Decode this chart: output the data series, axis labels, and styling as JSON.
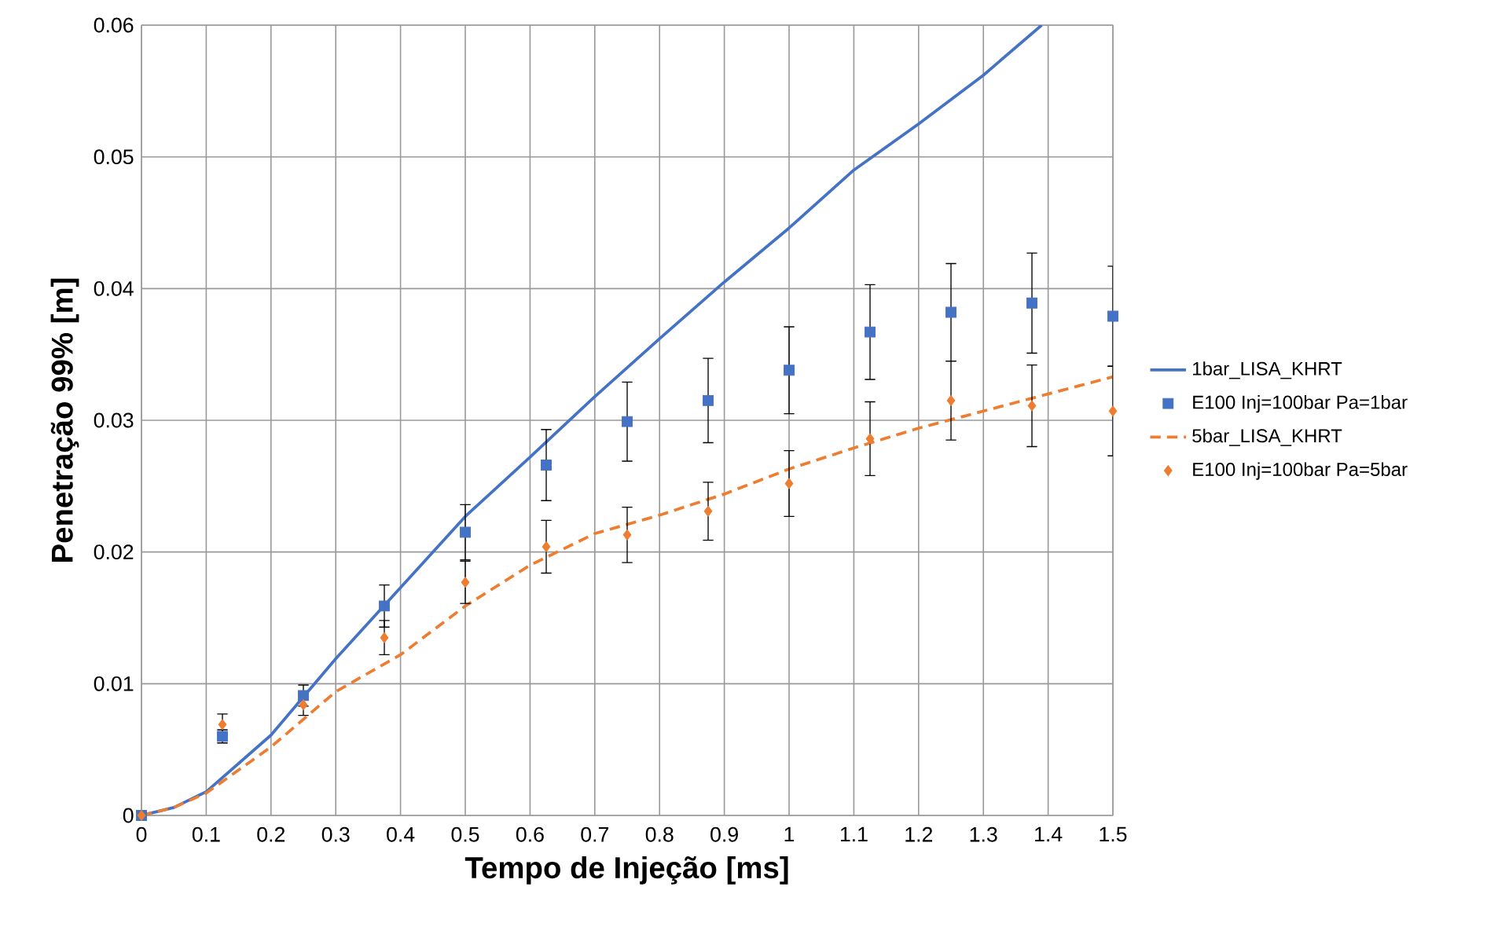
{
  "chart_data": {
    "type": "line",
    "xlabel": "Tempo de Injeção [ms]",
    "ylabel": "Penetração 99% [m]",
    "xlim": [
      0,
      1.5
    ],
    "ylim": [
      0,
      0.06
    ],
    "xticks": [
      0,
      0.1,
      0.2,
      0.3,
      0.4,
      0.5,
      0.6,
      0.7,
      0.8,
      0.9,
      1,
      1.1,
      1.2,
      1.3,
      1.4,
      1.5
    ],
    "yticks": [
      0,
      0.01,
      0.02,
      0.03,
      0.04,
      0.05,
      0.06
    ],
    "grid": true,
    "legend": "right",
    "series": [
      {
        "name": "1bar_LISA_KHRT",
        "type": "line",
        "color": "#4472c4",
        "line_style": "solid",
        "marker": "none",
        "x": [
          0,
          0.05,
          0.1,
          0.2,
          0.3,
          0.4,
          0.5,
          0.6,
          0.7,
          0.8,
          0.9,
          1.0,
          1.1,
          1.2,
          1.3,
          1.39
        ],
        "values": [
          0,
          0.0006,
          0.0018,
          0.0061,
          0.0119,
          0.0173,
          0.0227,
          0.0272,
          0.0318,
          0.0362,
          0.0405,
          0.0446,
          0.049,
          0.0525,
          0.0562,
          0.06
        ]
      },
      {
        "name": "E100 Inj=100bar Pa=1bar",
        "type": "scatter",
        "color": "#4472c4",
        "marker": "square",
        "x": [
          0,
          0.125,
          0.25,
          0.375,
          0.5,
          0.625,
          0.75,
          0.875,
          1.0,
          1.125,
          1.25,
          1.375,
          1.5
        ],
        "values": [
          0,
          0.006,
          0.0091,
          0.0159,
          0.0215,
          0.0266,
          0.0299,
          0.0315,
          0.0338,
          0.0367,
          0.0382,
          0.0389,
          0.0379
        ],
        "errors": [
          null,
          0.0005,
          0.0008,
          0.0016,
          0.0021,
          0.0027,
          0.003,
          0.0032,
          0.0033,
          0.0036,
          0.0037,
          0.0038,
          0.0038
        ]
      },
      {
        "name": "5bar_LISA_KHRT",
        "type": "line",
        "color": "#ed7d31",
        "line_style": "dashed",
        "marker": "none",
        "x": [
          0,
          0.05,
          0.1,
          0.2,
          0.3,
          0.4,
          0.5,
          0.6,
          0.7,
          0.8,
          0.9,
          1.0,
          1.1,
          1.2,
          1.3,
          1.4,
          1.5
        ],
        "values": [
          0,
          0.0006,
          0.0017,
          0.0052,
          0.0094,
          0.0122,
          0.0159,
          0.019,
          0.0214,
          0.0228,
          0.0244,
          0.0263,
          0.0279,
          0.0294,
          0.0307,
          0.032,
          0.0333
        ]
      },
      {
        "name": "E100 Inj=100bar Pa=5bar",
        "type": "scatter",
        "color": "#ed7d31",
        "marker": "diamond",
        "x": [
          0,
          0.125,
          0.25,
          0.375,
          0.5,
          0.625,
          0.75,
          0.875,
          1.0,
          1.125,
          1.25,
          1.375,
          1.5
        ],
        "values": [
          0,
          0.0069,
          0.0084,
          0.0135,
          0.0177,
          0.0204,
          0.0213,
          0.0231,
          0.0252,
          0.0286,
          0.0315,
          0.0311,
          0.0307
        ],
        "errors": [
          null,
          0.0008,
          0.0008,
          0.0013,
          0.0016,
          0.002,
          0.0021,
          0.0022,
          0.0025,
          0.0028,
          0.003,
          0.0031,
          0.0034
        ]
      }
    ]
  }
}
